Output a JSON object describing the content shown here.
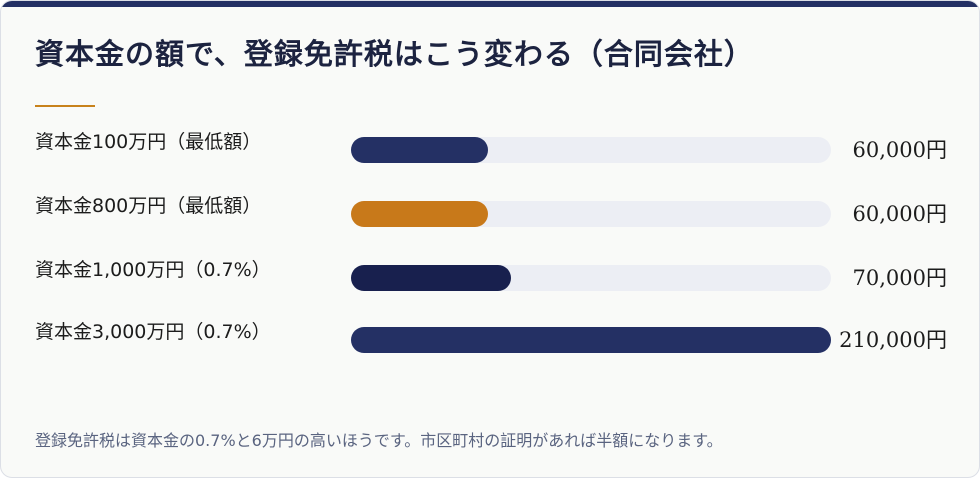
{
  "title": "資本金の額で、登録免許税はこう変わる（合同会社）",
  "footnote": "登録免許税は資本金の0.7%と6万円の高いほうです。市区町村の証明があれば半額になります。",
  "colors": {
    "navy": "#243064",
    "orange": "#c8791a",
    "dark_navy": "#18204e",
    "track": "#eceef4",
    "accent": "#c8821c"
  },
  "chart_data": {
    "type": "bar",
    "orientation": "horizontal",
    "title": "資本金の額で、登録免許税はこう変わる（合同会社）",
    "categories": [
      "資本金100万円（最低額）",
      "資本金800万円（最低額）",
      "資本金1,000万円（0.7%）",
      "資本金3,000万円（0.7%）"
    ],
    "values": [
      60000,
      60000,
      70000,
      210000
    ],
    "value_labels": [
      "60,000円",
      "60,000円",
      "70,000円",
      "210,000円"
    ],
    "bar_colors": [
      "#243064",
      "#c8791a",
      "#18204e",
      "#243064"
    ],
    "xlim": [
      0,
      210000
    ],
    "grid": false,
    "legend": "none"
  }
}
